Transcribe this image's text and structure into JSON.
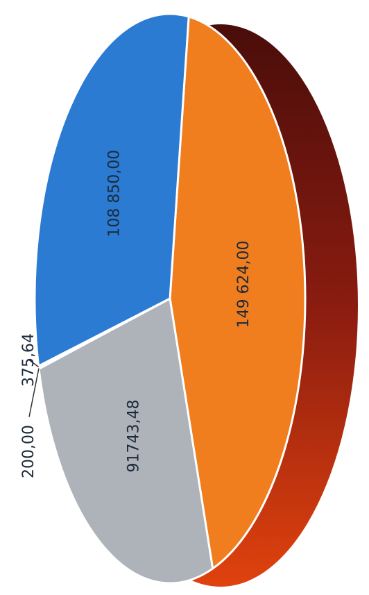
{
  "chart_data": {
    "type": "pie",
    "values": [
      149624,
      91743.48,
      200,
      375.64,
      108850
    ],
    "value_labels": [
      "149 624,00",
      "91743,48",
      "200,00",
      "375,64",
      "108 850,00"
    ],
    "colors": [
      "#f07d1e",
      "#aeb3ba",
      "#e4e8ec",
      "#d3d8de",
      "#2b7bd2"
    ]
  }
}
